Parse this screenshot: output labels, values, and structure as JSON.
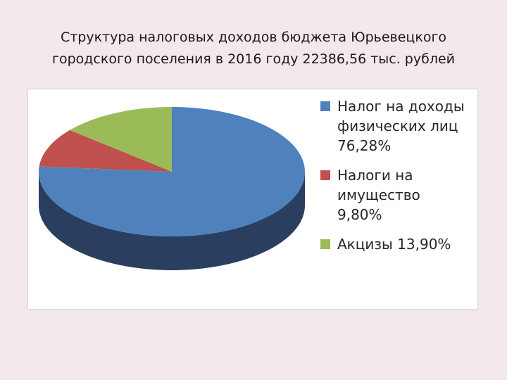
{
  "title": {
    "line1": "Структура налоговых доходов бюджета Юрьевецкого",
    "line2": "городского поселения в 2016 году 22386,56 тыс. рублей"
  },
  "chart_data": {
    "type": "pie",
    "style": "3d",
    "legend_position": "right",
    "slices": [
      {
        "label_lines": [
          "Налог на доходы",
          "физических лиц",
          "76,28%"
        ],
        "value": 76.28,
        "color": "#4f81bd",
        "side_color": "#2a3f5f"
      },
      {
        "label_lines": [
          "Налоги на",
          "имущество",
          "9,80%"
        ],
        "value": 9.8,
        "color": "#c0504d",
        "side_color": "#7a2f2d"
      },
      {
        "label_lines": [
          "Акцизы 13,90%"
        ],
        "value": 13.9,
        "color": "#9bbb59",
        "side_color": "#5f7636"
      }
    ]
  }
}
